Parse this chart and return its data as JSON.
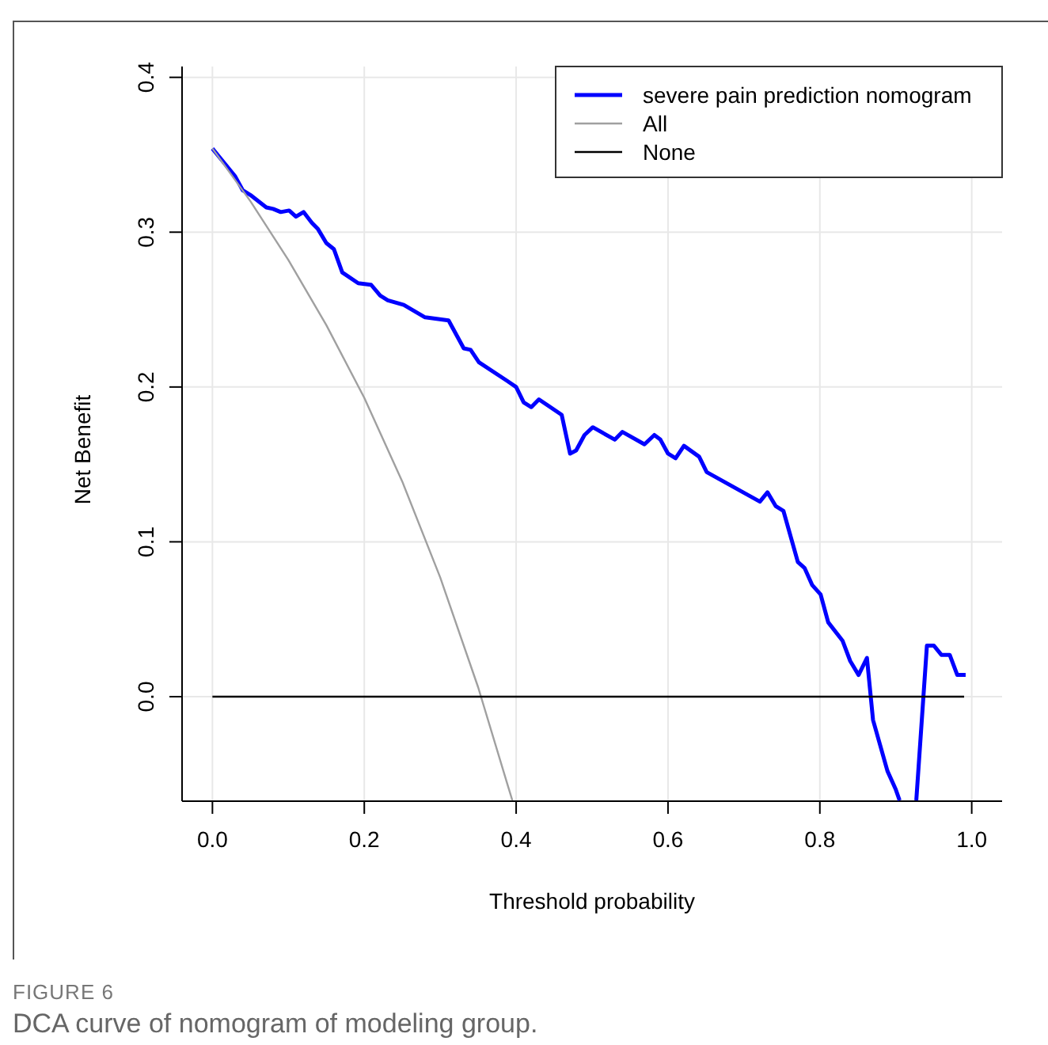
{
  "chart_data": {
    "type": "line",
    "xlabel": "Threshold probability",
    "ylabel": "Net Benefit",
    "xlim": [
      -0.04,
      1.04
    ],
    "ylim": [
      -0.0675,
      0.407
    ],
    "xticks": [
      {
        "value": 0,
        "label": "0.0"
      },
      0.2,
      0.4,
      0.6,
      0.8,
      {
        "value": 1,
        "label": "1.0"
      }
    ],
    "yticks": [
      {
        "value": 0,
        "label": "0.0"
      },
      0.1,
      0.2,
      0.3,
      0.4
    ],
    "grid": true,
    "legend": "top right",
    "line_style": "solid",
    "marker": "none",
    "annotations": [
      "FIGURE 6",
      "DCA curve of nomogram of modeling group."
    ],
    "series": [
      {
        "name": "severe pain prediction nomogram",
        "color": "#0000ff",
        "x": [
          0,
          0.03,
          0.04,
          0.05,
          0.071,
          0.08,
          0.09,
          0.101,
          0.11,
          0.12,
          0.131,
          0.139,
          0.15,
          0.16,
          0.171,
          0.192,
          0.209,
          0.221,
          0.231,
          0.252,
          0.28,
          0.311,
          0.331,
          0.34,
          0.351,
          0.388,
          0.4,
          0.41,
          0.42,
          0.43,
          0.46,
          0.471,
          0.479,
          0.49,
          0.501,
          0.53,
          0.54,
          0.569,
          0.582,
          0.59,
          0.6,
          0.61,
          0.621,
          0.641,
          0.651,
          0.721,
          0.731,
          0.742,
          0.752,
          0.771,
          0.78,
          0.79,
          0.801,
          0.811,
          0.83,
          0.84,
          0.851,
          0.862,
          0.87,
          0.889,
          0.9,
          0.905,
          0.915,
          0.927,
          0.941,
          0.95,
          0.96,
          0.971,
          0.981,
          0.992
        ],
        "values": [
          0.354,
          0.336,
          0.327,
          0.324,
          0.316,
          0.315,
          0.313,
          0.314,
          0.31,
          0.313,
          0.306,
          0.302,
          0.293,
          0.289,
          0.274,
          0.267,
          0.266,
          0.259,
          0.256,
          0.253,
          0.245,
          0.243,
          0.225,
          0.224,
          0.216,
          0.204,
          0.2,
          0.19,
          0.187,
          0.192,
          0.182,
          0.157,
          0.159,
          0.169,
          0.174,
          0.166,
          0.171,
          0.163,
          0.169,
          0.166,
          0.157,
          0.154,
          0.162,
          0.155,
          0.145,
          0.126,
          0.132,
          0.123,
          0.12,
          0.087,
          0.083,
          0.072,
          0.066,
          0.048,
          0.036,
          0.023,
          0.014,
          0.025,
          -0.015,
          -0.048,
          -0.06,
          -0.067,
          null,
          -0.067,
          0.033,
          0.033,
          0.027,
          0.027,
          0.014,
          0.014
        ]
      },
      {
        "name": "All",
        "color": "#a0a0a0",
        "x": [
          0,
          0.05,
          0.1,
          0.15,
          0.2,
          0.25,
          0.3,
          0.35,
          0.39,
          0.395
        ],
        "values": [
          0.354,
          0.32,
          0.282,
          0.24,
          0.193,
          0.139,
          0.077,
          0.006,
          -0.059,
          -0.067
        ]
      },
      {
        "name": "None",
        "color": "#000000",
        "x": [
          0,
          0.99
        ],
        "values": [
          0,
          0
        ]
      }
    ]
  }
}
